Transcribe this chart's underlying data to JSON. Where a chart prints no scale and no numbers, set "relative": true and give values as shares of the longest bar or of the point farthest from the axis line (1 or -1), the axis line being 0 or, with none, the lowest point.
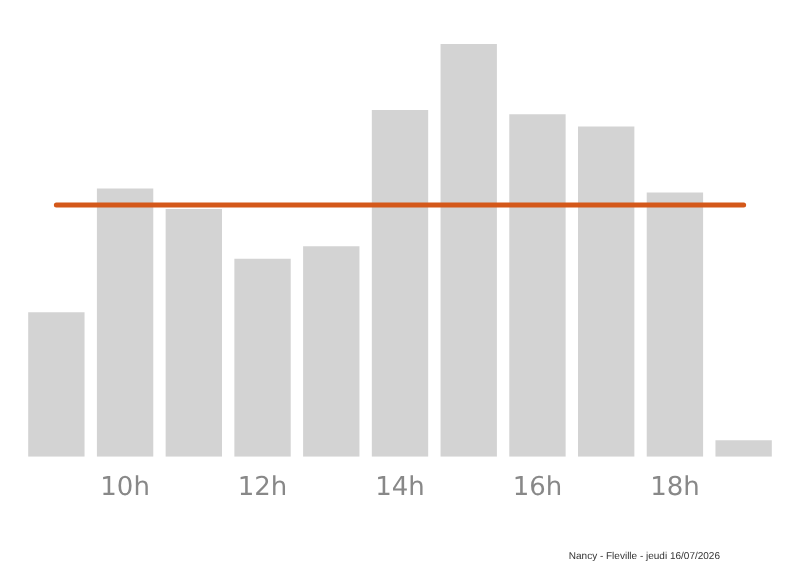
{
  "chart_data": {
    "type": "bar",
    "relative": true,
    "categories": [
      null,
      "10h",
      null,
      "12h",
      null,
      "14h",
      null,
      "16h",
      null,
      "18h",
      null
    ],
    "values": [
      0.35,
      0.65,
      0.6,
      0.48,
      0.51,
      0.84,
      1,
      0.83,
      0.8,
      0.64,
      0.04
    ],
    "color": "#d3d3d3",
    "ref_lines": [
      {
        "axis": "y",
        "value": 0.61,
        "color": "#d4581a"
      }
    ],
    "annotations": [
      "Nancy - Fleville - jeudi 16/07/2026"
    ],
    "grid": false,
    "legend": false
  }
}
